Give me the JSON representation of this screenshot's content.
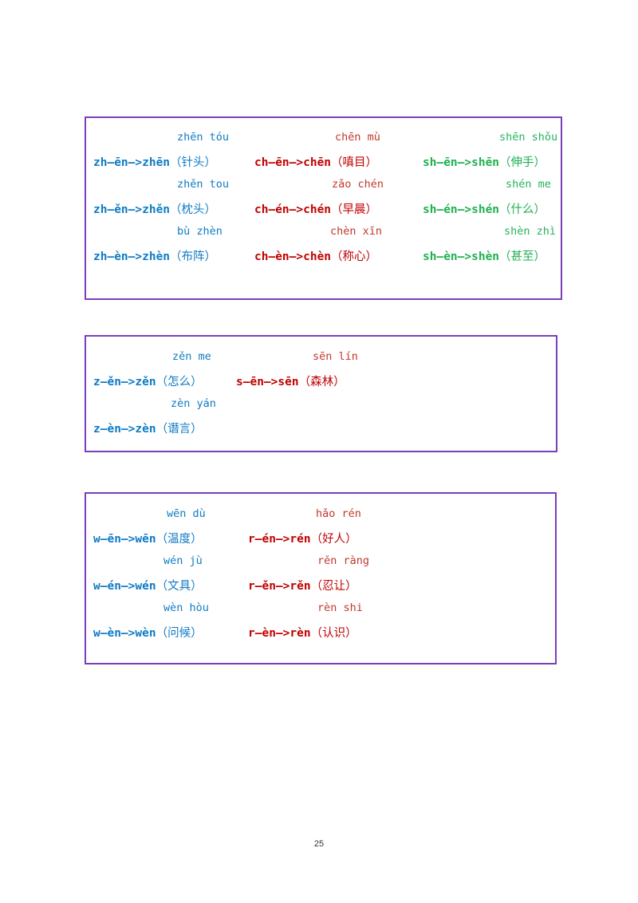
{
  "page_number": "25",
  "colors": {
    "blue": "#0f7bc4",
    "red": "#c00000",
    "green": "#1fb050",
    "border": "#7a3fbd"
  },
  "box1": {
    "rows": [
      {
        "pinyin": [
          "zhēn tóu",
          "chēn mù",
          "shēn shǒu"
        ],
        "rules": [
          {
            "seg": "zh—ēn—>zhēn",
            "word": "（针头）"
          },
          {
            "seg": "ch—ēn—>chēn",
            "word": "（嗔目）"
          },
          {
            "seg": "sh—ēn—>shēn",
            "word": "（伸手）"
          }
        ]
      },
      {
        "pinyin": [
          "zhěn tou",
          "zǎo chén",
          "shén me"
        ],
        "rules": [
          {
            "seg": "zh—ěn—>zhěn",
            "word": "（枕头）"
          },
          {
            "seg": "ch—én—>chén",
            "word": "（早晨）"
          },
          {
            "seg": "sh—én—>shén",
            "word": "（什么）"
          }
        ]
      },
      {
        "pinyin": [
          "bù zhèn",
          "chèn xīn",
          "shèn zhì"
        ],
        "rules": [
          {
            "seg": "zh—èn—>zhèn",
            "word": "（布阵）"
          },
          {
            "seg": "ch—èn—>chèn",
            "word": "（称心）"
          },
          {
            "seg": "sh—èn—>shèn",
            "word": "（甚至）"
          }
        ]
      }
    ]
  },
  "box2": {
    "rows": [
      {
        "pinyin": [
          "zěn me",
          "sēn lín"
        ],
        "rules": [
          {
            "seg": "z—ěn—>zěn",
            "word": "（怎么）"
          },
          {
            "seg": "s—ēn—>sēn",
            "word": "（森林）"
          }
        ]
      },
      {
        "pinyin": [
          "zèn yán"
        ],
        "rules": [
          {
            "seg": "z—èn—>zèn",
            "word": "（谮言）"
          }
        ]
      }
    ]
  },
  "box3": {
    "rows": [
      {
        "pinyin": [
          "wēn dù",
          "hǎo rén"
        ],
        "rules": [
          {
            "seg": "w—ēn—>wēn",
            "word": "（温度）"
          },
          {
            "seg": "r—én—>rén",
            "word": "（好人）"
          }
        ]
      },
      {
        "pinyin": [
          "wén jù",
          "rěn ràng"
        ],
        "rules": [
          {
            "seg": "w—én—>wén",
            "word": "（文具）"
          },
          {
            "seg": "r—ěn—>rěn",
            "word": "（忍让）"
          }
        ]
      },
      {
        "pinyin": [
          "wèn hòu",
          "rèn shi"
        ],
        "rules": [
          {
            "seg": "w—èn—>wèn",
            "word": "（问候）"
          },
          {
            "seg": "r—èn—>rèn",
            "word": "（认识）"
          }
        ]
      }
    ]
  }
}
